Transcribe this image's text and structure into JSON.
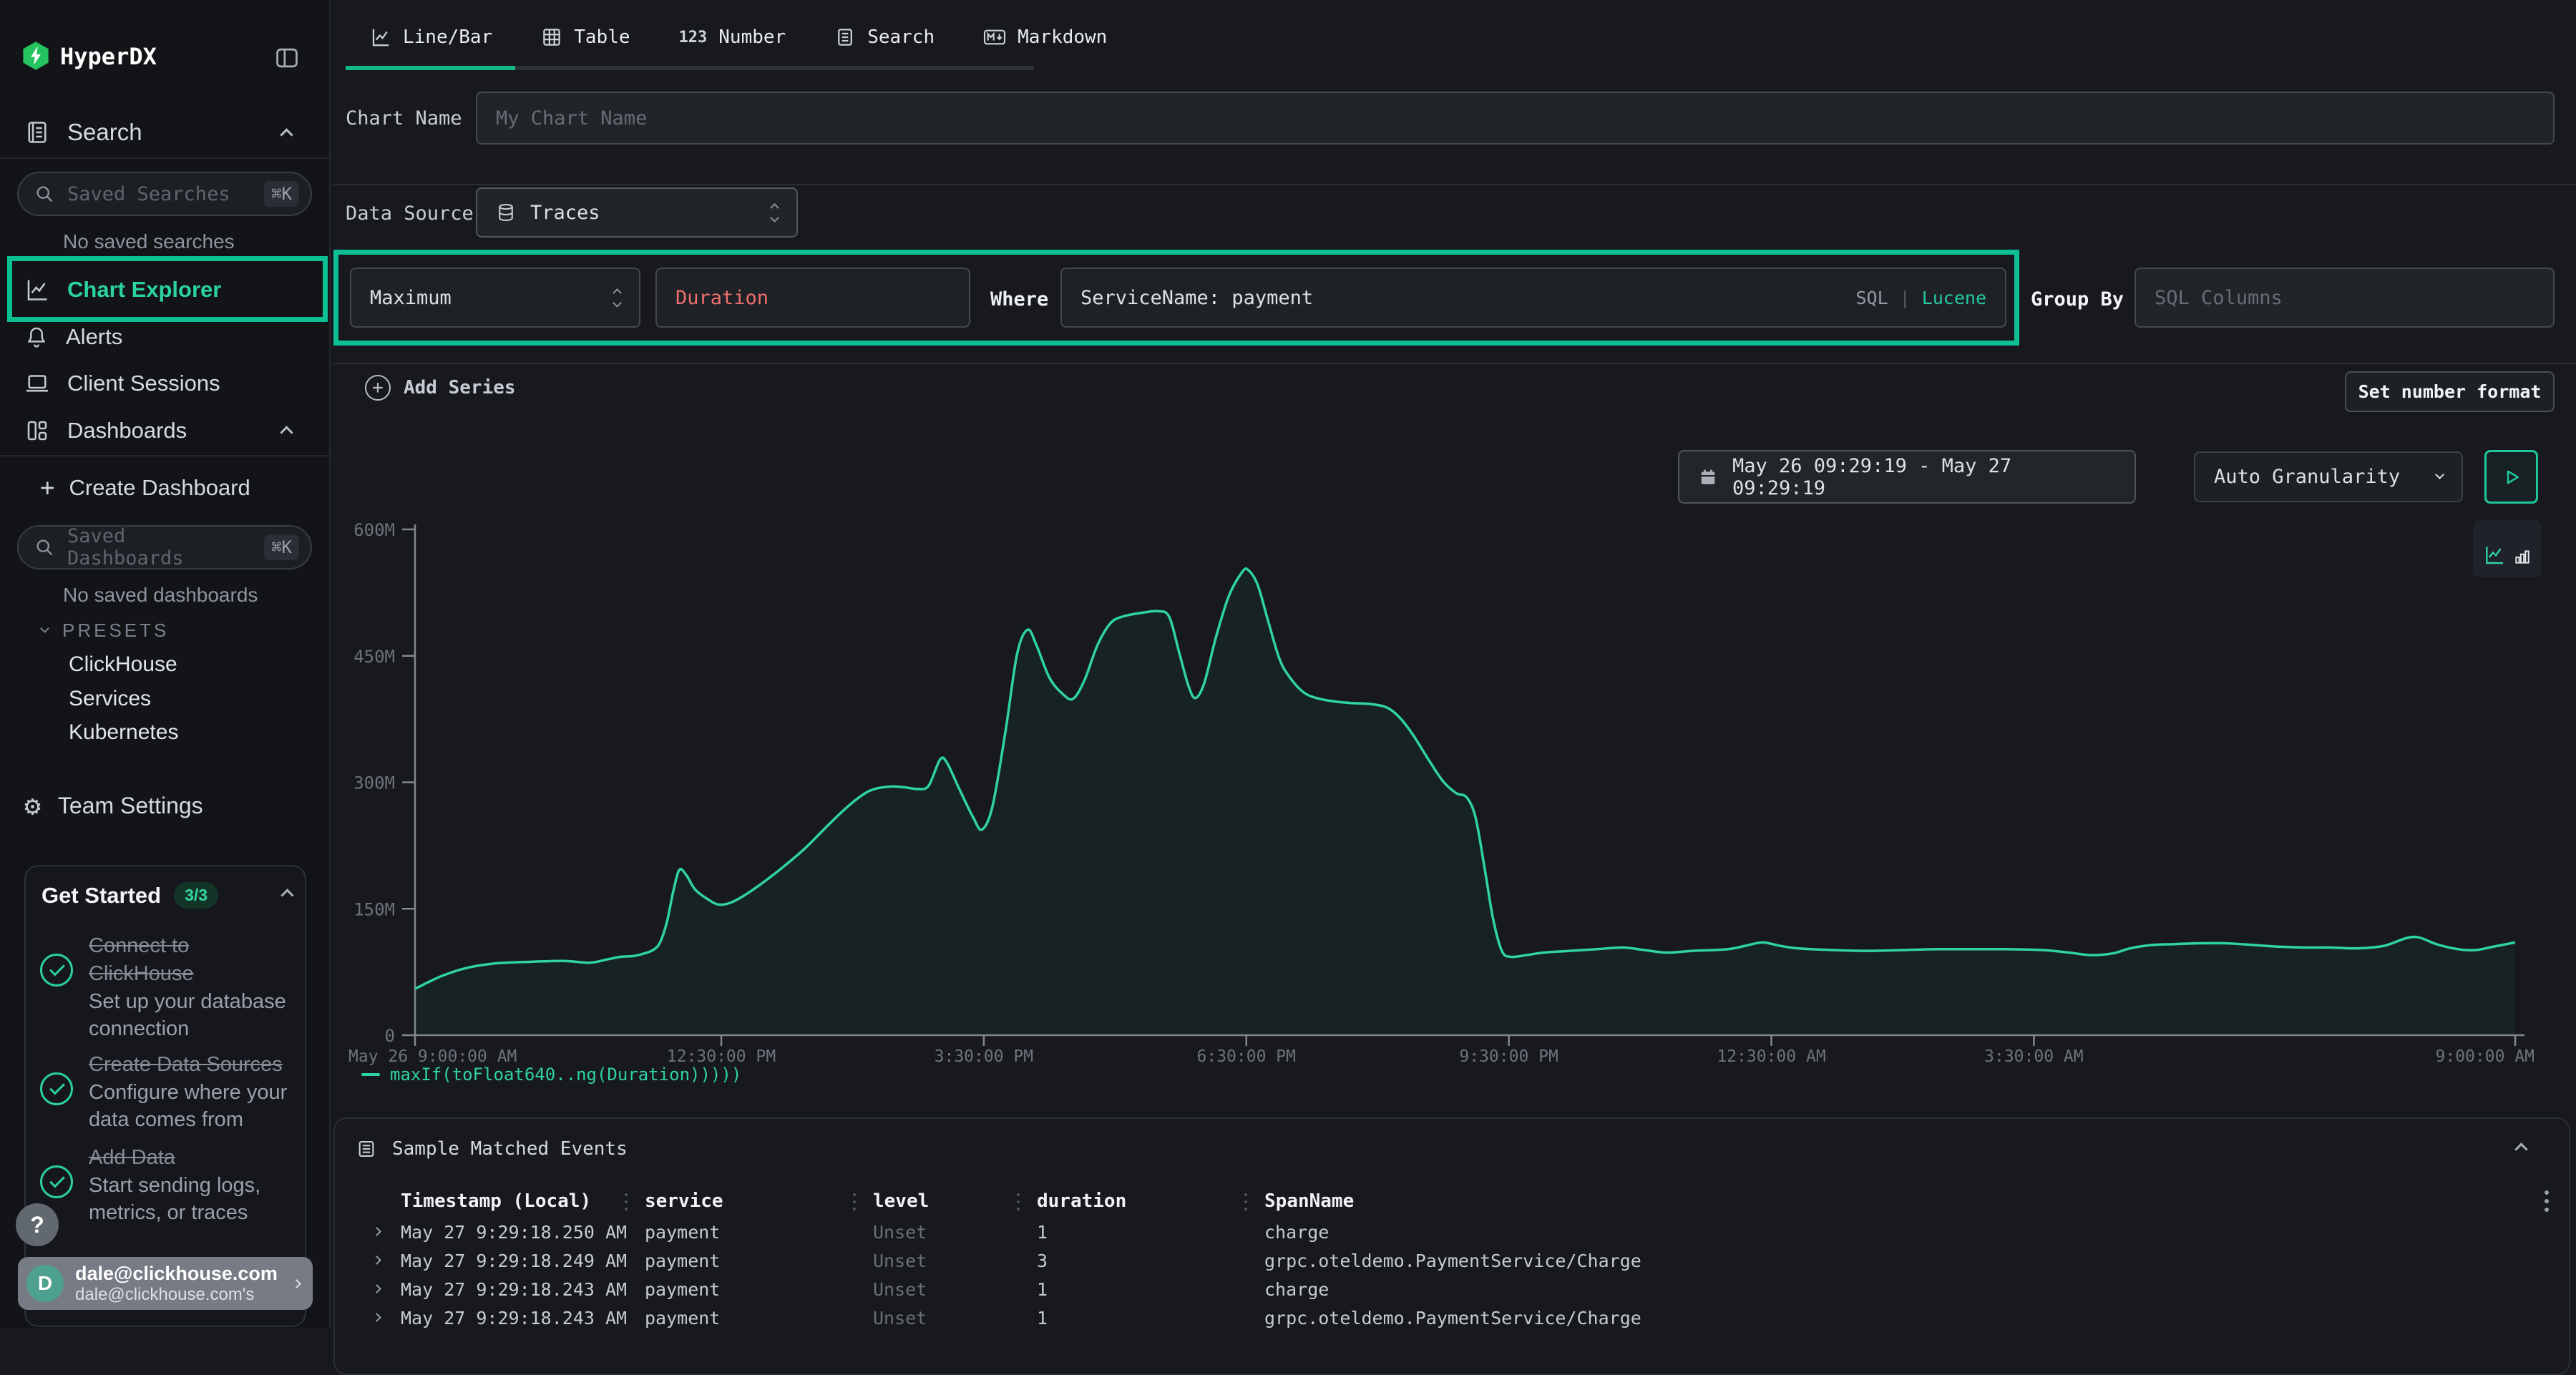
{
  "app": {
    "name": "HyperDX"
  },
  "colors": {
    "accent_teal": "#20c9a0",
    "annotation_box": "#0cc094",
    "series_line": "#2fd3a5",
    "field_red": "#ef6f6f",
    "logo_green": "#23c45e"
  },
  "sidebar": {
    "search_section": {
      "label": "Search"
    },
    "saved_searches": {
      "placeholder": "Saved Searches",
      "shortcut": "⌘K",
      "empty": "No saved searches"
    },
    "nav": [
      {
        "label": "Chart Explorer",
        "active": true
      },
      {
        "label": "Alerts"
      },
      {
        "label": "Client Sessions"
      },
      {
        "label": "Dashboards"
      }
    ],
    "create_dashboard": "Create Dashboard",
    "saved_dashboards": {
      "placeholder": "Saved Dashboards",
      "shortcut": "⌘K",
      "empty": "No saved dashboards"
    },
    "presets": {
      "label": "PRESETS",
      "items": [
        "ClickHouse",
        "Services",
        "Kubernetes"
      ]
    },
    "team_settings": "Team Settings",
    "get_started": {
      "title": "Get Started",
      "badge": "3/3",
      "items": [
        {
          "title": "Connect to ClickHouse",
          "desc": "Set up your database connection"
        },
        {
          "title": "Create Data Sources",
          "desc": "Configure where your data comes from"
        },
        {
          "title": "Add Data",
          "desc": "Start sending logs, metrics, or traces"
        }
      ]
    },
    "help_label": "?",
    "user": {
      "initial": "D",
      "name": "dale@clickhouse.com",
      "org": "dale@clickhouse.com's"
    }
  },
  "tabs": [
    {
      "label": "Line/Bar",
      "active": true
    },
    {
      "label": "Table"
    },
    {
      "label": "Number",
      "icon_text": "123"
    },
    {
      "label": "Search"
    },
    {
      "label": "Markdown"
    }
  ],
  "form": {
    "chart_name_label": "Chart Name",
    "chart_name_placeholder": "My Chart Name",
    "data_source_label": "Data Source",
    "data_source_value": "Traces",
    "aggregation": "Maximum",
    "field": "Duration",
    "where_label": "Where",
    "where_value": "ServiceName: payment",
    "sql_label": "SQL",
    "pipe": "|",
    "lucene_label": "Lucene",
    "group_by_label": "Group By",
    "group_by_placeholder": "SQL Columns",
    "add_series": "Add Series",
    "set_number_format": "Set number format",
    "date_range": "May 26 09:29:19 - May 27 09:29:19",
    "granularity": "Auto Granularity"
  },
  "chart_data": {
    "type": "line",
    "grid": false,
    "legend_position": "bottom-left",
    "x_unit": "hours since May 26 9:00:00 AM (24h window)",
    "x_range": [
      0,
      24
    ],
    "ylim": [
      0,
      600
    ],
    "y_unit": "M",
    "y_ticks": [
      {
        "v": 0,
        "label": "0"
      },
      {
        "v": 150,
        "label": "150M"
      },
      {
        "v": 300,
        "label": "300M"
      },
      {
        "v": 450,
        "label": "450M"
      },
      {
        "v": 600,
        "label": "600M"
      }
    ],
    "x_ticks": [
      {
        "t": 0,
        "label": "May 26 9:00:00 AM"
      },
      {
        "t": 3.5,
        "label": "12:30:00 PM"
      },
      {
        "t": 6.5,
        "label": "3:30:00 PM"
      },
      {
        "t": 9.5,
        "label": "6:30:00 PM"
      },
      {
        "t": 12.5,
        "label": "9:30:00 PM"
      },
      {
        "t": 15.5,
        "label": "12:30:00 AM"
      },
      {
        "t": 18.5,
        "label": "3:30:00 AM"
      },
      {
        "t": 24,
        "label": "9:00:00 AM"
      }
    ],
    "series": [
      {
        "name": "maxIf(toFloat640..ng(Duration)))))",
        "color": "#2fd3a5",
        "points": [
          [
            0,
            55
          ],
          [
            0.3,
            70
          ],
          [
            0.6,
            80
          ],
          [
            0.9,
            85
          ],
          [
            1.3,
            87
          ],
          [
            1.7,
            88
          ],
          [
            2,
            86
          ],
          [
            2.2,
            90
          ],
          [
            2.35,
            93
          ],
          [
            2.5,
            94
          ],
          [
            2.62,
            97
          ],
          [
            2.72,
            101
          ],
          [
            2.8,
            110
          ],
          [
            2.88,
            135
          ],
          [
            2.95,
            170
          ],
          [
            3.02,
            196
          ],
          [
            3.1,
            190
          ],
          [
            3.2,
            173
          ],
          [
            3.35,
            161
          ],
          [
            3.47,
            155
          ],
          [
            3.6,
            157
          ],
          [
            3.75,
            165
          ],
          [
            3.95,
            179
          ],
          [
            4.2,
            199
          ],
          [
            4.45,
            221
          ],
          [
            4.7,
            247
          ],
          [
            4.9,
            267
          ],
          [
            5.1,
            284
          ],
          [
            5.25,
            292
          ],
          [
            5.45,
            295
          ],
          [
            5.6,
            294
          ],
          [
            5.75,
            292
          ],
          [
            5.87,
            296
          ],
          [
            6,
            327
          ],
          [
            6.08,
            323
          ],
          [
            6.22,
            292
          ],
          [
            6.38,
            258
          ],
          [
            6.48,
            244
          ],
          [
            6.6,
            272
          ],
          [
            6.75,
            362
          ],
          [
            6.88,
            452
          ],
          [
            7,
            481
          ],
          [
            7.1,
            463
          ],
          [
            7.25,
            424
          ],
          [
            7.4,
            405
          ],
          [
            7.52,
            399
          ],
          [
            7.65,
            421
          ],
          [
            7.8,
            463
          ],
          [
            7.95,
            489
          ],
          [
            8.1,
            497
          ],
          [
            8.3,
            501
          ],
          [
            8.5,
            503
          ],
          [
            8.62,
            496
          ],
          [
            8.73,
            455
          ],
          [
            8.84,
            414
          ],
          [
            8.92,
            400
          ],
          [
            9.02,
            418
          ],
          [
            9.15,
            471
          ],
          [
            9.3,
            521
          ],
          [
            9.45,
            549
          ],
          [
            9.52,
            552
          ],
          [
            9.63,
            534
          ],
          [
            9.75,
            491
          ],
          [
            9.88,
            446
          ],
          [
            10,
            424
          ],
          [
            10.15,
            407
          ],
          [
            10.3,
            400
          ],
          [
            10.5,
            396
          ],
          [
            10.7,
            394
          ],
          [
            10.9,
            393
          ],
          [
            11.1,
            389
          ],
          [
            11.25,
            377
          ],
          [
            11.4,
            357
          ],
          [
            11.6,
            324
          ],
          [
            11.75,
            301
          ],
          [
            11.9,
            287
          ],
          [
            12.02,
            282
          ],
          [
            12.12,
            258
          ],
          [
            12.22,
            200
          ],
          [
            12.32,
            138
          ],
          [
            12.42,
            100
          ],
          [
            12.52,
            93
          ],
          [
            12.7,
            95
          ],
          [
            12.9,
            98
          ],
          [
            13.2,
            100
          ],
          [
            13.5,
            102
          ],
          [
            13.8,
            104
          ],
          [
            14.05,
            101
          ],
          [
            14.3,
            98
          ],
          [
            14.6,
            100
          ],
          [
            15,
            102
          ],
          [
            15.2,
            106
          ],
          [
            15.4,
            110
          ],
          [
            15.6,
            106
          ],
          [
            15.8,
            103
          ],
          [
            16.2,
            101
          ],
          [
            16.6,
            100
          ],
          [
            17,
            101
          ],
          [
            17.4,
            102
          ],
          [
            17.8,
            102
          ],
          [
            18.2,
            102
          ],
          [
            18.6,
            101
          ],
          [
            18.9,
            98
          ],
          [
            19.15,
            95
          ],
          [
            19.4,
            97
          ],
          [
            19.6,
            103
          ],
          [
            19.85,
            107
          ],
          [
            20.1,
            108
          ],
          [
            20.4,
            109
          ],
          [
            20.7,
            109
          ],
          [
            21,
            107
          ],
          [
            21.3,
            105
          ],
          [
            21.6,
            104
          ],
          [
            21.9,
            104
          ],
          [
            22.2,
            103
          ],
          [
            22.5,
            106
          ],
          [
            22.75,
            115
          ],
          [
            22.9,
            116
          ],
          [
            23.1,
            108
          ],
          [
            23.35,
            102
          ],
          [
            23.55,
            101
          ],
          [
            23.75,
            105
          ],
          [
            24,
            110
          ]
        ]
      }
    ]
  },
  "events": {
    "title": "Sample Matched Events",
    "columns": [
      "Timestamp (Local)",
      "service",
      "level",
      "duration",
      "SpanName"
    ],
    "rows": [
      [
        "May 27 9:29:18.250 AM",
        "payment",
        "Unset",
        "1",
        "charge"
      ],
      [
        "May 27 9:29:18.249 AM",
        "payment",
        "Unset",
        "3",
        "grpc.oteldemo.PaymentService/Charge"
      ],
      [
        "May 27 9:29:18.243 AM",
        "payment",
        "Unset",
        "1",
        "charge"
      ],
      [
        "May 27 9:29:18.243 AM",
        "payment",
        "Unset",
        "1",
        "grpc.oteldemo.PaymentService/Charge"
      ]
    ]
  }
}
